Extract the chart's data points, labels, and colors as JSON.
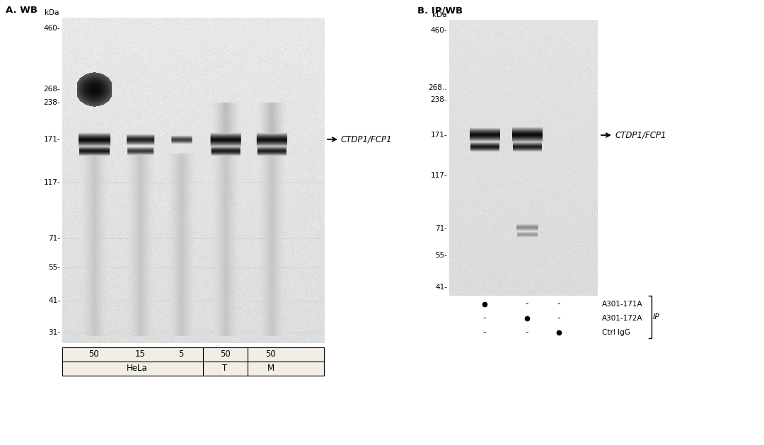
{
  "panel_A_title": "A. WB",
  "panel_B_title": "B. IP/WB",
  "white_bg": "#ffffff",
  "ladder_kdas_A": [
    460,
    268,
    238,
    171,
    117,
    71,
    55,
    41,
    31
  ],
  "ladder_labels_A": [
    "460-",
    "268-",
    "238-",
    "171-",
    "117-",
    "71-",
    "55-",
    "41-",
    "31-"
  ],
  "ladder_kdas_B": [
    460,
    268,
    238,
    171,
    117,
    71,
    55,
    41
  ],
  "ladder_labels_B": [
    "460-",
    "268..",
    "238-",
    "171-",
    "117-",
    "71-",
    "55-",
    "41-"
  ],
  "arrow_label": "CTDP1/FCP1",
  "ip_labels": [
    "A301-171A",
    "A301-172A",
    "Ctrl IgG"
  ],
  "ip_bracket_label": "IP",
  "samples_A": [
    "50",
    "15",
    "5",
    "50",
    "50"
  ],
  "groups_A": [
    "HeLa",
    "T",
    "M"
  ]
}
